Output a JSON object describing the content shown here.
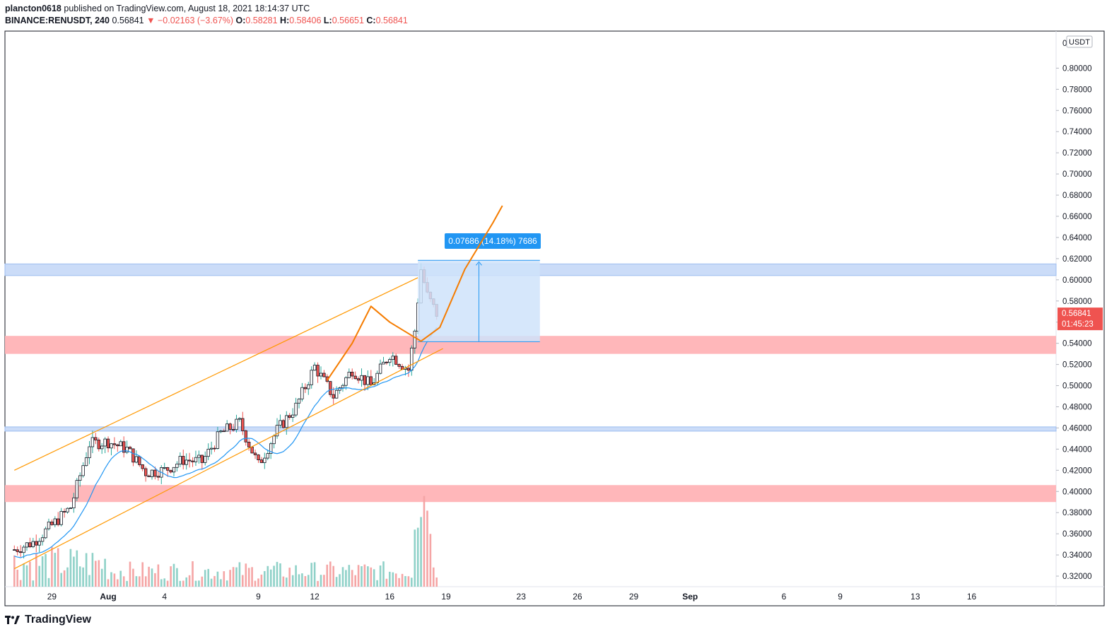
{
  "header": {
    "author": "plancton0618",
    "published": "published on TradingView.com, August 18, 2021 18:14:37 UTC",
    "symbol": "BINANCE:RENUSDT, 240",
    "last": "0.56841",
    "arrow": "▼",
    "change": "−0.02163 (−3.67%)",
    "o_label": "O:",
    "o_value": "0.58281",
    "h_label": "H:",
    "h_value": "0.58406",
    "l_label": "L:",
    "l_value": "0.56651",
    "c_label": "C:",
    "c_value": "0.56841"
  },
  "colors": {
    "up": "#26a69a",
    "down": "#ef5350",
    "up_vol": "#8fd1c8",
    "down_vol": "#f5a5a5",
    "ma": "#2196f3",
    "channel": "#ff9800",
    "projection": "#f57c00",
    "blue_zone": "#c5d8f7",
    "red_zone": "#ffb3b6",
    "measure": "#cfe3fa",
    "measure_edge": "#2196f3"
  },
  "chart_data": {
    "type": "candlestick",
    "timeframe": "240",
    "currency_label": "USDT",
    "price_ticks": [
      "0.80000",
      "0.78000",
      "0.76000",
      "0.74000",
      "0.72000",
      "0.70000",
      "0.68000",
      "0.66000",
      "0.64000",
      "0.62000",
      "0.60000",
      "0.58000",
      "0.56000",
      "0.54000",
      "0.52000",
      "0.50000",
      "0.48000",
      "0.46000",
      "0.44000",
      "0.42000",
      "0.40000",
      "0.38000",
      "0.36000",
      "0.34000",
      "0.32000"
    ],
    "price_top_tick": "0",
    "x_ticks": [
      {
        "label": "29",
        "date": "2021-07-29"
      },
      {
        "label": "Aug",
        "date": "2021-08-01"
      },
      {
        "label": "4",
        "date": "2021-08-04"
      },
      {
        "label": "9",
        "date": "2021-08-09"
      },
      {
        "label": "12",
        "date": "2021-08-12"
      },
      {
        "label": "16",
        "date": "2021-08-16"
      },
      {
        "label": "19",
        "date": "2021-08-19"
      },
      {
        "label": "23",
        "date": "2021-08-23"
      },
      {
        "label": "26",
        "date": "2021-08-26"
      },
      {
        "label": "29",
        "date": "2021-08-29"
      },
      {
        "label": "Sep",
        "date": "2021-09-01"
      },
      {
        "label": "6",
        "date": "2021-09-06"
      },
      {
        "label": "9",
        "date": "2021-09-09"
      },
      {
        "label": "13",
        "date": "2021-09-13"
      },
      {
        "label": "16",
        "date": "2021-09-16"
      }
    ],
    "price_range": [
      0.31,
      0.835
    ],
    "last_price_label": "0.56841",
    "countdown": "01:45:23",
    "zones": [
      {
        "kind": "resistance",
        "color": "blue",
        "low": 0.604,
        "high": 0.615
      },
      {
        "kind": "support",
        "color": "red",
        "low": 0.53,
        "high": 0.547
      },
      {
        "kind": "support",
        "color": "blue",
        "low": 0.457,
        "high": 0.461
      },
      {
        "kind": "support",
        "color": "red",
        "low": 0.39,
        "high": 0.406
      }
    ],
    "measure": {
      "label": "0.07686 (14.18%) 7686",
      "from_price": 0.5415,
      "to_price": 0.6184,
      "start_date": "2021-08-17T12:00",
      "end_date": "2021-08-24T00:00"
    },
    "channel": {
      "upper": [
        {
          "date": "2021-07-27",
          "price": 0.42
        },
        {
          "date": "2021-08-17T12:00",
          "price": 0.602
        }
      ],
      "lower": [
        {
          "date": "2021-07-27",
          "price": 0.327
        },
        {
          "date": "2021-08-18T20:00",
          "price": 0.535
        }
      ]
    },
    "projection_path": [
      {
        "date": "2021-08-12T16:00",
        "price": 0.505
      },
      {
        "date": "2021-08-14T00:00",
        "price": 0.54
      },
      {
        "date": "2021-08-15T00:00",
        "price": 0.575
      },
      {
        "date": "2021-08-16T00:00",
        "price": 0.56
      },
      {
        "date": "2021-08-17T16:00",
        "price": 0.542
      },
      {
        "date": "2021-08-18T16:00",
        "price": 0.555
      },
      {
        "date": "2021-08-20T00:00",
        "price": 0.61
      },
      {
        "date": "2021-08-21T12:00",
        "price": 0.654
      },
      {
        "date": "2021-08-22T00:00",
        "price": 0.67
      }
    ],
    "candles_close_path": [
      {
        "date": "2021-07-27",
        "close": 0.345
      },
      {
        "date": "2021-07-28",
        "close": 0.352
      },
      {
        "date": "2021-07-29",
        "close": 0.368
      },
      {
        "date": "2021-07-30",
        "close": 0.385
      },
      {
        "date": "2021-07-31",
        "close": 0.445
      },
      {
        "date": "2021-08-01",
        "close": 0.447
      },
      {
        "date": "2021-08-02",
        "close": 0.44
      },
      {
        "date": "2021-08-03",
        "close": 0.418
      },
      {
        "date": "2021-08-04",
        "close": 0.42
      },
      {
        "date": "2021-08-05",
        "close": 0.43
      },
      {
        "date": "2021-08-06",
        "close": 0.428
      },
      {
        "date": "2021-08-07",
        "close": 0.455
      },
      {
        "date": "2021-08-08",
        "close": 0.465
      },
      {
        "date": "2021-08-09",
        "close": 0.425
      },
      {
        "date": "2021-08-10",
        "close": 0.458
      },
      {
        "date": "2021-08-11",
        "close": 0.48
      },
      {
        "date": "2021-08-12",
        "close": 0.518
      },
      {
        "date": "2021-08-13",
        "close": 0.49
      },
      {
        "date": "2021-08-14",
        "close": 0.515
      },
      {
        "date": "2021-08-15",
        "close": 0.5
      },
      {
        "date": "2021-08-16",
        "close": 0.53
      },
      {
        "date": "2021-08-17",
        "close": 0.515
      },
      {
        "date": "2021-08-17T08:00",
        "close": 0.552
      },
      {
        "date": "2021-08-17T16:00",
        "close": 0.61
      },
      {
        "date": "2021-08-18",
        "close": 0.585
      },
      {
        "date": "2021-08-18T12:00",
        "close": 0.568
      }
    ]
  },
  "footer": {
    "brand": "TradingView"
  }
}
